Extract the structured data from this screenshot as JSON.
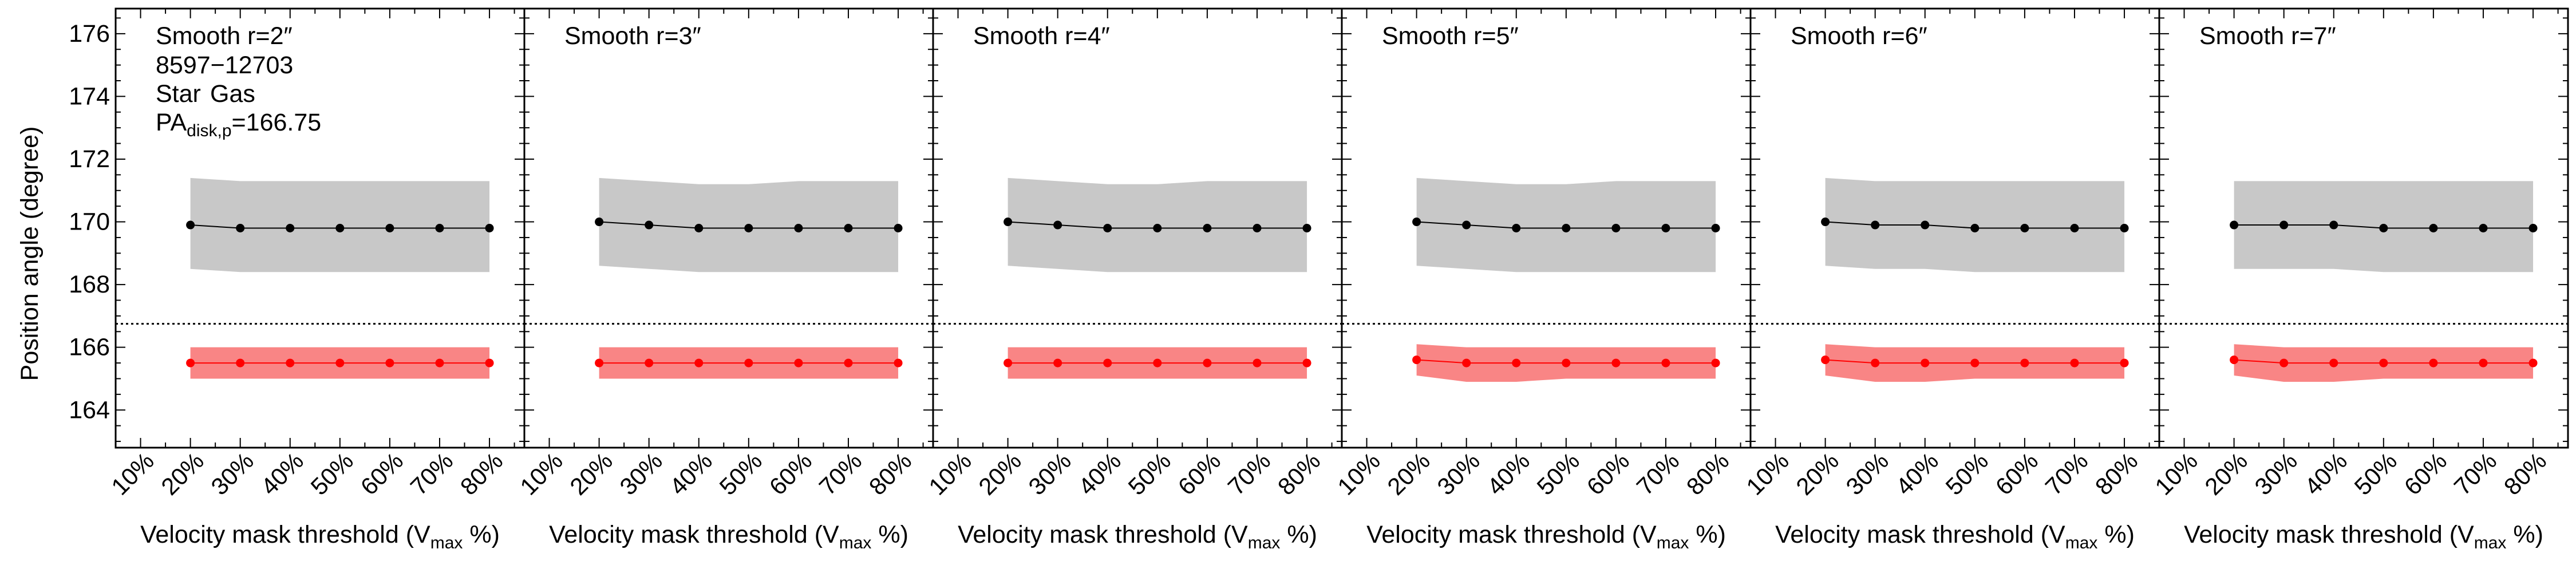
{
  "figure": {
    "y_axis_label": "Position angle (degree)",
    "x_axis_label_prefix": "Velocity mask threshold (V",
    "x_axis_label_subscript": "max",
    "x_axis_label_suffix": " %)",
    "annotations": {
      "galaxy_id": "8597−12703",
      "legend_star": "Star",
      "legend_gas": "Gas",
      "pa_prefix": "PA",
      "pa_subscript": "disk,p",
      "pa_value_text": "=166.75"
    }
  },
  "colors": {
    "star_line": "#000000",
    "star_band": "#c8c8c8",
    "gas_line": "#ff0000",
    "gas_band": "#f98585",
    "reference_line": "#000000"
  },
  "chart_data": [
    {
      "type": "line",
      "title": "Smooth r=2″",
      "categories": [
        "10%",
        "20%",
        "30%",
        "40%",
        "50%",
        "60%",
        "70%",
        "80%"
      ],
      "x": [
        20,
        30,
        40,
        50,
        60,
        70,
        80
      ],
      "xlim": [
        5,
        87
      ],
      "ylim": [
        162.8,
        176.8
      ],
      "y_ticks": [
        164,
        166,
        168,
        170,
        172,
        174,
        176
      ],
      "reference_line": 166.75,
      "grid": false,
      "series": [
        {
          "name": "Star",
          "values": [
            169.9,
            169.8,
            169.8,
            169.8,
            169.8,
            169.8,
            169.8
          ],
          "band_upper": [
            171.4,
            171.3,
            171.3,
            171.3,
            171.3,
            171.3,
            171.3
          ],
          "band_lower": [
            168.5,
            168.4,
            168.4,
            168.4,
            168.4,
            168.4,
            168.4
          ]
        },
        {
          "name": "Gas",
          "values": [
            165.5,
            165.5,
            165.5,
            165.5,
            165.5,
            165.5,
            165.5
          ],
          "band_upper": [
            166.0,
            166.0,
            166.0,
            166.0,
            166.0,
            166.0,
            166.0
          ],
          "band_lower": [
            165.0,
            165.0,
            165.0,
            165.0,
            165.0,
            165.0,
            165.0
          ]
        }
      ]
    },
    {
      "type": "line",
      "title": "Smooth r=3″",
      "categories": [
        "10%",
        "20%",
        "30%",
        "40%",
        "50%",
        "60%",
        "70%",
        "80%"
      ],
      "x": [
        20,
        30,
        40,
        50,
        60,
        70,
        80
      ],
      "xlim": [
        5,
        87
      ],
      "ylim": [
        162.8,
        176.8
      ],
      "y_ticks": [
        164,
        166,
        168,
        170,
        172,
        174,
        176
      ],
      "reference_line": 166.75,
      "grid": false,
      "series": [
        {
          "name": "Star",
          "values": [
            170.0,
            169.9,
            169.8,
            169.8,
            169.8,
            169.8,
            169.8
          ],
          "band_upper": [
            171.4,
            171.3,
            171.2,
            171.2,
            171.3,
            171.3,
            171.3
          ],
          "band_lower": [
            168.6,
            168.5,
            168.4,
            168.4,
            168.4,
            168.4,
            168.4
          ]
        },
        {
          "name": "Gas",
          "values": [
            165.5,
            165.5,
            165.5,
            165.5,
            165.5,
            165.5,
            165.5
          ],
          "band_upper": [
            166.0,
            166.0,
            166.0,
            166.0,
            166.0,
            166.0,
            166.0
          ],
          "band_lower": [
            165.0,
            165.0,
            165.0,
            165.0,
            165.0,
            165.0,
            165.0
          ]
        }
      ]
    },
    {
      "type": "line",
      "title": "Smooth r=4″",
      "categories": [
        "10%",
        "20%",
        "30%",
        "40%",
        "50%",
        "60%",
        "70%",
        "80%"
      ],
      "x": [
        20,
        30,
        40,
        50,
        60,
        70,
        80
      ],
      "xlim": [
        5,
        87
      ],
      "ylim": [
        162.8,
        176.8
      ],
      "y_ticks": [
        164,
        166,
        168,
        170,
        172,
        174,
        176
      ],
      "reference_line": 166.75,
      "grid": false,
      "series": [
        {
          "name": "Star",
          "values": [
            170.0,
            169.9,
            169.8,
            169.8,
            169.8,
            169.8,
            169.8
          ],
          "band_upper": [
            171.4,
            171.3,
            171.2,
            171.2,
            171.3,
            171.3,
            171.3
          ],
          "band_lower": [
            168.6,
            168.5,
            168.4,
            168.4,
            168.4,
            168.4,
            168.4
          ]
        },
        {
          "name": "Gas",
          "values": [
            165.5,
            165.5,
            165.5,
            165.5,
            165.5,
            165.5,
            165.5
          ],
          "band_upper": [
            166.0,
            166.0,
            166.0,
            166.0,
            166.0,
            166.0,
            166.0
          ],
          "band_lower": [
            165.0,
            165.0,
            165.0,
            165.0,
            165.0,
            165.0,
            165.0
          ]
        }
      ]
    },
    {
      "type": "line",
      "title": "Smooth r=5″",
      "categories": [
        "10%",
        "20%",
        "30%",
        "40%",
        "50%",
        "60%",
        "70%",
        "80%"
      ],
      "x": [
        20,
        30,
        40,
        50,
        60,
        70,
        80
      ],
      "xlim": [
        5,
        87
      ],
      "ylim": [
        162.8,
        176.8
      ],
      "y_ticks": [
        164,
        166,
        168,
        170,
        172,
        174,
        176
      ],
      "reference_line": 166.75,
      "grid": false,
      "series": [
        {
          "name": "Star",
          "values": [
            170.0,
            169.9,
            169.8,
            169.8,
            169.8,
            169.8,
            169.8
          ],
          "band_upper": [
            171.4,
            171.3,
            171.2,
            171.2,
            171.3,
            171.3,
            171.3
          ],
          "band_lower": [
            168.6,
            168.5,
            168.4,
            168.4,
            168.4,
            168.4,
            168.4
          ]
        },
        {
          "name": "Gas",
          "values": [
            165.6,
            165.5,
            165.5,
            165.5,
            165.5,
            165.5,
            165.5
          ],
          "band_upper": [
            166.1,
            166.0,
            166.0,
            166.0,
            166.0,
            166.0,
            166.0
          ],
          "band_lower": [
            165.1,
            164.9,
            164.9,
            165.0,
            165.0,
            165.0,
            165.0
          ]
        }
      ]
    },
    {
      "type": "line",
      "title": "Smooth r=6″",
      "categories": [
        "10%",
        "20%",
        "30%",
        "40%",
        "50%",
        "60%",
        "70%",
        "80%"
      ],
      "x": [
        20,
        30,
        40,
        50,
        60,
        70,
        80
      ],
      "xlim": [
        5,
        87
      ],
      "ylim": [
        162.8,
        176.8
      ],
      "y_ticks": [
        164,
        166,
        168,
        170,
        172,
        174,
        176
      ],
      "reference_line": 166.75,
      "grid": false,
      "series": [
        {
          "name": "Star",
          "values": [
            170.0,
            169.9,
            169.9,
            169.8,
            169.8,
            169.8,
            169.8
          ],
          "band_upper": [
            171.4,
            171.3,
            171.3,
            171.3,
            171.3,
            171.3,
            171.3
          ],
          "band_lower": [
            168.6,
            168.5,
            168.5,
            168.4,
            168.4,
            168.4,
            168.4
          ]
        },
        {
          "name": "Gas",
          "values": [
            165.6,
            165.5,
            165.5,
            165.5,
            165.5,
            165.5,
            165.5
          ],
          "band_upper": [
            166.1,
            166.0,
            166.0,
            166.0,
            166.0,
            166.0,
            166.0
          ],
          "band_lower": [
            165.1,
            164.9,
            164.9,
            165.0,
            165.0,
            165.0,
            165.0
          ]
        }
      ]
    },
    {
      "type": "line",
      "title": "Smooth r=7″",
      "categories": [
        "10%",
        "20%",
        "30%",
        "40%",
        "50%",
        "60%",
        "70%",
        "80%"
      ],
      "x": [
        20,
        30,
        40,
        50,
        60,
        70,
        80
      ],
      "xlim": [
        5,
        87
      ],
      "ylim": [
        162.8,
        176.8
      ],
      "y_ticks": [
        164,
        166,
        168,
        170,
        172,
        174,
        176
      ],
      "reference_line": 166.75,
      "grid": false,
      "series": [
        {
          "name": "Star",
          "values": [
            169.9,
            169.9,
            169.9,
            169.8,
            169.8,
            169.8,
            169.8
          ],
          "band_upper": [
            171.3,
            171.3,
            171.3,
            171.3,
            171.3,
            171.3,
            171.3
          ],
          "band_lower": [
            168.5,
            168.5,
            168.5,
            168.4,
            168.4,
            168.4,
            168.4
          ]
        },
        {
          "name": "Gas",
          "values": [
            165.6,
            165.5,
            165.5,
            165.5,
            165.5,
            165.5,
            165.5
          ],
          "band_upper": [
            166.1,
            166.0,
            166.0,
            166.0,
            166.0,
            166.0,
            166.0
          ],
          "band_lower": [
            165.1,
            164.9,
            164.9,
            165.0,
            165.0,
            165.0,
            165.0
          ]
        }
      ]
    }
  ]
}
